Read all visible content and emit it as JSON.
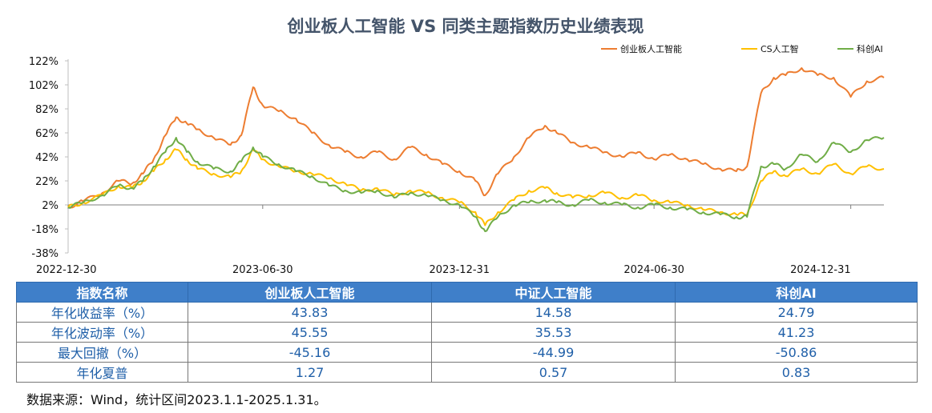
{
  "chart_data": {
    "type": "line",
    "title": "创业板人工智能 VS 同类主题指数历史业绩表现",
    "xlabel": "",
    "ylabel": "",
    "ylim": [
      -38,
      122
    ],
    "yticks": [
      "122%",
      "102%",
      "82%",
      "62%",
      "42%",
      "22%",
      "2%",
      "-18%",
      "-38%"
    ],
    "yvalues": [
      122,
      102,
      82,
      62,
      42,
      22,
      2,
      -18,
      -38
    ],
    "xlim": [
      "2022-12-30",
      "2025-01-31"
    ],
    "xticks": [
      "2022-12-30",
      "2023-06-30",
      "2023-12-31",
      "2024-06-30",
      "2024-12-31"
    ],
    "grid": false,
    "legend_position": "top-right",
    "series": [
      {
        "name": "创业板人工智能",
        "color": "#ed7d31",
        "points": [
          [
            "2022-12-30",
            0
          ],
          [
            "2023-01-13",
            5
          ],
          [
            "2023-01-31",
            12
          ],
          [
            "2023-02-15",
            22
          ],
          [
            "2023-02-28",
            20
          ],
          [
            "2023-03-10",
            28
          ],
          [
            "2023-03-20",
            40
          ],
          [
            "2023-03-31",
            60
          ],
          [
            "2023-04-10",
            75
          ],
          [
            "2023-04-20",
            70
          ],
          [
            "2023-04-30",
            65
          ],
          [
            "2023-05-15",
            58
          ],
          [
            "2023-05-31",
            52
          ],
          [
            "2023-06-10",
            60
          ],
          [
            "2023-06-21",
            100
          ],
          [
            "2023-06-30",
            85
          ],
          [
            "2023-07-15",
            80
          ],
          [
            "2023-07-31",
            74
          ],
          [
            "2023-08-15",
            62
          ],
          [
            "2023-08-31",
            52
          ],
          [
            "2023-09-15",
            46
          ],
          [
            "2023-09-30",
            42
          ],
          [
            "2023-10-15",
            46
          ],
          [
            "2023-10-31",
            40
          ],
          [
            "2023-11-15",
            50
          ],
          [
            "2023-11-30",
            44
          ],
          [
            "2023-12-15",
            36
          ],
          [
            "2023-12-31",
            30
          ],
          [
            "2024-01-15",
            22
          ],
          [
            "2024-01-24",
            10
          ],
          [
            "2024-02-05",
            28
          ],
          [
            "2024-02-20",
            42
          ],
          [
            "2024-03-05",
            58
          ],
          [
            "2024-03-20",
            68
          ],
          [
            "2024-03-31",
            62
          ],
          [
            "2024-04-15",
            54
          ],
          [
            "2024-04-30",
            50
          ],
          [
            "2024-05-15",
            46
          ],
          [
            "2024-05-31",
            42
          ],
          [
            "2024-06-15",
            46
          ],
          [
            "2024-06-30",
            40
          ],
          [
            "2024-07-15",
            44
          ],
          [
            "2024-07-31",
            40
          ],
          [
            "2024-08-15",
            36
          ],
          [
            "2024-08-31",
            32
          ],
          [
            "2024-09-15",
            30
          ],
          [
            "2024-09-25",
            34
          ],
          [
            "2024-10-08",
            95
          ],
          [
            "2024-10-20",
            108
          ],
          [
            "2024-10-31",
            110
          ],
          [
            "2024-11-15",
            116
          ],
          [
            "2024-11-30",
            110
          ],
          [
            "2024-12-15",
            108
          ],
          [
            "2024-12-31",
            92
          ],
          [
            "2025-01-15",
            105
          ],
          [
            "2025-01-31",
            108
          ]
        ]
      },
      {
        "name": "CS人工智",
        "color": "#ffc000",
        "points": [
          [
            "2022-12-30",
            0
          ],
          [
            "2023-01-13",
            4
          ],
          [
            "2023-01-31",
            10
          ],
          [
            "2023-02-15",
            18
          ],
          [
            "2023-02-28",
            16
          ],
          [
            "2023-03-10",
            22
          ],
          [
            "2023-03-20",
            30
          ],
          [
            "2023-03-31",
            40
          ],
          [
            "2023-04-10",
            48
          ],
          [
            "2023-04-20",
            40
          ],
          [
            "2023-04-30",
            32
          ],
          [
            "2023-05-15",
            28
          ],
          [
            "2023-05-31",
            25
          ],
          [
            "2023-06-10",
            30
          ],
          [
            "2023-06-21",
            48
          ],
          [
            "2023-06-30",
            40
          ],
          [
            "2023-07-15",
            34
          ],
          [
            "2023-07-31",
            30
          ],
          [
            "2023-08-15",
            28
          ],
          [
            "2023-08-31",
            24
          ],
          [
            "2023-09-15",
            20
          ],
          [
            "2023-09-30",
            14
          ],
          [
            "2023-10-15",
            16
          ],
          [
            "2023-10-31",
            10
          ],
          [
            "2023-11-15",
            14
          ],
          [
            "2023-11-30",
            12
          ],
          [
            "2023-12-15",
            8
          ],
          [
            "2023-12-31",
            4
          ],
          [
            "2024-01-15",
            -4
          ],
          [
            "2024-01-24",
            -15
          ],
          [
            "2024-02-05",
            -4
          ],
          [
            "2024-02-20",
            6
          ],
          [
            "2024-03-05",
            14
          ],
          [
            "2024-03-20",
            16
          ],
          [
            "2024-03-31",
            12
          ],
          [
            "2024-04-15",
            8
          ],
          [
            "2024-04-30",
            10
          ],
          [
            "2024-05-15",
            12
          ],
          [
            "2024-05-31",
            8
          ],
          [
            "2024-06-15",
            10
          ],
          [
            "2024-06-30",
            6
          ],
          [
            "2024-07-15",
            4
          ],
          [
            "2024-07-31",
            2
          ],
          [
            "2024-08-15",
            -2
          ],
          [
            "2024-08-31",
            -4
          ],
          [
            "2024-09-15",
            -6
          ],
          [
            "2024-09-25",
            -6
          ],
          [
            "2024-10-08",
            22
          ],
          [
            "2024-10-20",
            30
          ],
          [
            "2024-10-31",
            26
          ],
          [
            "2024-11-15",
            32
          ],
          [
            "2024-11-30",
            28
          ],
          [
            "2024-12-15",
            36
          ],
          [
            "2024-12-31",
            28
          ],
          [
            "2025-01-15",
            34
          ],
          [
            "2025-01-31",
            32
          ]
        ]
      },
      {
        "name": "科创AI",
        "color": "#70ad47",
        "points": [
          [
            "2022-12-30",
            0
          ],
          [
            "2023-01-13",
            4
          ],
          [
            "2023-01-31",
            10
          ],
          [
            "2023-02-15",
            18
          ],
          [
            "2023-02-28",
            16
          ],
          [
            "2023-03-10",
            22
          ],
          [
            "2023-03-20",
            34
          ],
          [
            "2023-03-31",
            46
          ],
          [
            "2023-04-10",
            58
          ],
          [
            "2023-04-20",
            46
          ],
          [
            "2023-04-30",
            38
          ],
          [
            "2023-05-15",
            32
          ],
          [
            "2023-05-31",
            30
          ],
          [
            "2023-06-10",
            38
          ],
          [
            "2023-06-21",
            50
          ],
          [
            "2023-06-30",
            42
          ],
          [
            "2023-07-15",
            36
          ],
          [
            "2023-07-31",
            30
          ],
          [
            "2023-08-15",
            26
          ],
          [
            "2023-08-31",
            18
          ],
          [
            "2023-09-15",
            14
          ],
          [
            "2023-09-30",
            12
          ],
          [
            "2023-10-15",
            14
          ],
          [
            "2023-10-31",
            8
          ],
          [
            "2023-11-15",
            12
          ],
          [
            "2023-11-30",
            10
          ],
          [
            "2023-12-15",
            6
          ],
          [
            "2023-12-31",
            2
          ],
          [
            "2024-01-15",
            -8
          ],
          [
            "2024-01-24",
            -20
          ],
          [
            "2024-02-05",
            -8
          ],
          [
            "2024-02-20",
            2
          ],
          [
            "2024-03-05",
            4
          ],
          [
            "2024-03-20",
            6
          ],
          [
            "2024-03-31",
            4
          ],
          [
            "2024-04-15",
            2
          ],
          [
            "2024-04-30",
            6
          ],
          [
            "2024-05-15",
            4
          ],
          [
            "2024-05-31",
            2
          ],
          [
            "2024-06-15",
            0
          ],
          [
            "2024-06-30",
            2
          ],
          [
            "2024-07-15",
            0
          ],
          [
            "2024-07-31",
            -2
          ],
          [
            "2024-08-15",
            -4
          ],
          [
            "2024-08-31",
            -6
          ],
          [
            "2024-09-15",
            -8
          ],
          [
            "2024-09-25",
            -8
          ],
          [
            "2024-10-08",
            34
          ],
          [
            "2024-10-20",
            36
          ],
          [
            "2024-10-31",
            32
          ],
          [
            "2024-11-15",
            44
          ],
          [
            "2024-11-30",
            38
          ],
          [
            "2024-12-15",
            54
          ],
          [
            "2024-12-31",
            46
          ],
          [
            "2025-01-15",
            56
          ],
          [
            "2025-01-31",
            58
          ]
        ]
      }
    ]
  },
  "table": {
    "headers": [
      "指数名称",
      "创业板人工智能",
      "中证人工智能",
      "科创AI"
    ],
    "rows": [
      {
        "label": "年化收益率（%）",
        "values": [
          "43.83",
          "14.58",
          "24.79"
        ]
      },
      {
        "label": "年化波动率（%）",
        "values": [
          "45.55",
          "35.53",
          "41.23"
        ]
      },
      {
        "label": "最大回撤（%）",
        "values": [
          "-45.16",
          "-44.99",
          "-50.86"
        ]
      },
      {
        "label": "年化夏普",
        "values": [
          "1.27",
          "0.57",
          "0.83"
        ]
      }
    ]
  },
  "note": "数据来源：Wind，统计区间2023.1.1-2025.1.31。"
}
